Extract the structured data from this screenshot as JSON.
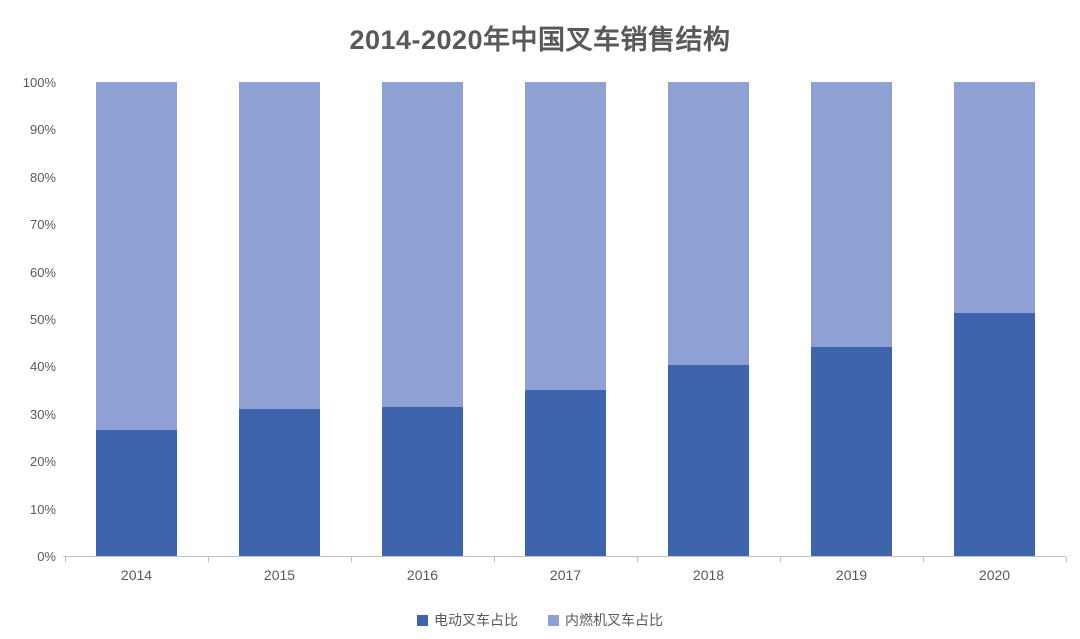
{
  "title": "2014-2020年中国叉车销售结构",
  "chart_data": {
    "type": "bar",
    "subtype": "stacked-100-percent",
    "title": "2014-2020年中国叉车销售结构",
    "categories": [
      "2014",
      "2015",
      "2016",
      "2017",
      "2018",
      "2019",
      "2020"
    ],
    "series": [
      {
        "name": "电动叉车占比",
        "color": "#3D64AD",
        "values": [
          26.5,
          31.0,
          31.5,
          35.0,
          40.3,
          44.0,
          51.3
        ]
      },
      {
        "name": "内燃机叉车占比",
        "color": "#8FA0D5",
        "values": [
          73.5,
          69.0,
          68.5,
          65.0,
          59.7,
          56.0,
          48.7
        ]
      }
    ],
    "xlabel": "",
    "ylabel": "",
    "ylim": [
      0,
      100
    ],
    "ytick_step": 10,
    "ytick_labels": [
      "0%",
      "10%",
      "20%",
      "30%",
      "40%",
      "50%",
      "60%",
      "70%",
      "80%",
      "90%",
      "100%"
    ],
    "grid": false,
    "legend_position": "bottom-center"
  },
  "colors": {
    "title_text": "#595959",
    "axis_text": "#595959",
    "axis_line": "#BFBFBF",
    "background": "#FFFFFF"
  }
}
